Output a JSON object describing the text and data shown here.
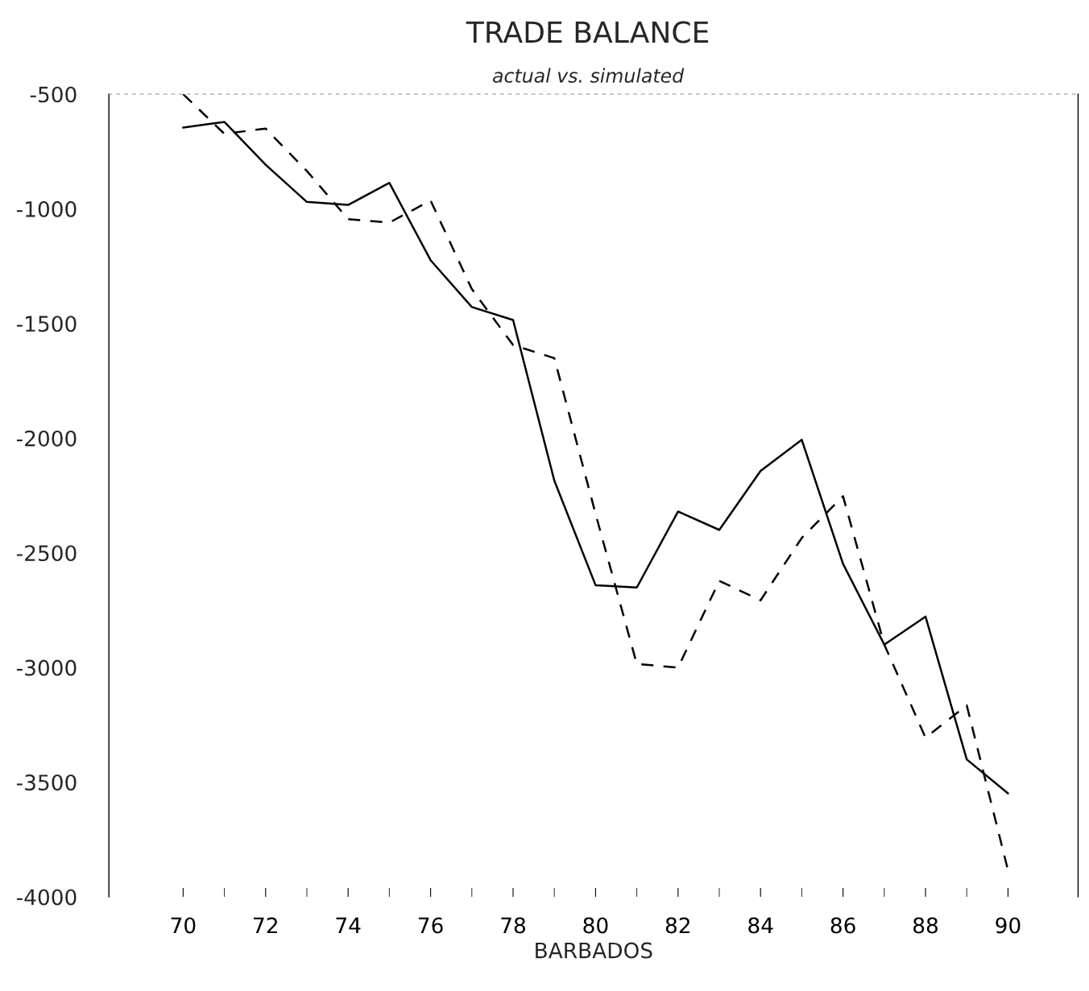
{
  "chart_data": {
    "type": "line",
    "title": "TRADE BALANCE",
    "subtitle": "actual vs. simulated",
    "xlabel": "BARBADOS",
    "x": [
      70,
      71,
      72,
      73,
      74,
      75,
      76,
      77,
      78,
      79,
      80,
      81,
      82,
      83,
      84,
      85,
      86,
      87,
      88,
      89,
      90
    ],
    "series": [
      {
        "color": "#000000",
        "line_style": "solid",
        "values": [
          -646,
          -621,
          -808,
          -970,
          -983,
          -887,
          -1224,
          -1428,
          -1485,
          -2185,
          -2641,
          -2651,
          -2320,
          -2400,
          -2143,
          -2007,
          -2548,
          -2900,
          -2778,
          -3401,
          -3549
        ]
      },
      {
        "color": "#000000",
        "line_style": "dashed",
        "values": [
          -500,
          -673,
          -650,
          -835,
          -1045,
          -1060,
          -964,
          -1350,
          -1594,
          -1651,
          -2330,
          -2985,
          -3000,
          -2622,
          -2707,
          -2435,
          -2253,
          -2900,
          -3306,
          -3165,
          -3884
        ]
      }
    ],
    "xlim": [
      68.2,
      91.7
    ],
    "ylim": [
      -4000,
      -500
    ],
    "xticks": [
      70,
      72,
      74,
      76,
      78,
      80,
      82,
      84,
      86,
      88,
      90
    ],
    "yticks": [
      -500,
      -1000,
      -1500,
      -2000,
      -2500,
      -3000,
      -3500,
      -4000
    ],
    "grid": false,
    "legend": false,
    "marker": "none"
  }
}
